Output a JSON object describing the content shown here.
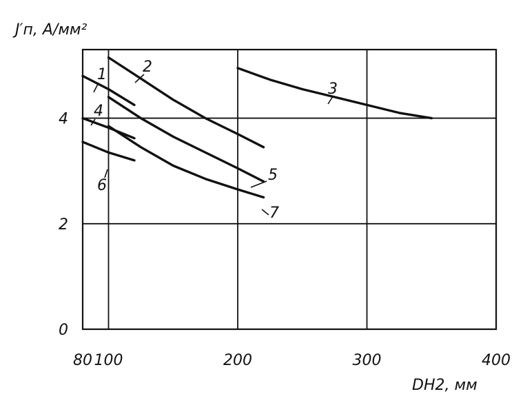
{
  "chart_data": {
    "type": "line",
    "ylabel": "J′п, А/мм²",
    "xlabel": "DН2, мм",
    "xlim": [
      80,
      400
    ],
    "ylim": [
      0,
      5.3
    ],
    "x_ticks": [
      80,
      100,
      200,
      300,
      400
    ],
    "x_tick_labels": [
      "80",
      "100",
      "200",
      "300",
      "400"
    ],
    "y_ticks": [
      0,
      2,
      4
    ],
    "y_tick_labels": [
      "0",
      "2",
      "4"
    ],
    "grid": true,
    "series": [
      {
        "name": "1",
        "x": [
          80,
          100,
          120
        ],
        "y": [
          4.8,
          4.55,
          4.25
        ]
      },
      {
        "name": "2",
        "x": [
          100,
          125,
          150,
          175,
          200,
          220
        ],
        "y": [
          5.15,
          4.75,
          4.35,
          4.0,
          3.7,
          3.45
        ]
      },
      {
        "name": "3",
        "x": [
          200,
          225,
          250,
          275,
          300,
          325,
          350
        ],
        "y": [
          4.95,
          4.73,
          4.55,
          4.4,
          4.25,
          4.1,
          4.0
        ]
      },
      {
        "name": "4",
        "x": [
          80,
          100,
          120
        ],
        "y": [
          4.0,
          3.82,
          3.62
        ]
      },
      {
        "name": "5",
        "x": [
          100,
          125,
          150,
          175,
          200,
          220
        ],
        "y": [
          4.4,
          4.0,
          3.65,
          3.35,
          3.05,
          2.8
        ]
      },
      {
        "name": "6",
        "x": [
          80,
          100,
          120
        ],
        "y": [
          3.55,
          3.35,
          3.2
        ]
      },
      {
        "name": "7",
        "x": [
          100,
          125,
          150,
          175,
          200,
          220
        ],
        "y": [
          3.85,
          3.45,
          3.1,
          2.85,
          2.65,
          2.5
        ]
      }
    ]
  }
}
